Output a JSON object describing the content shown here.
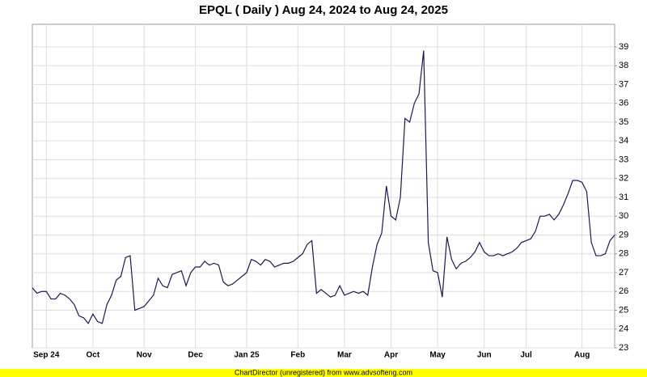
{
  "chart_data": {
    "type": "line",
    "title": "EPQL ( Daily ) Aug 24, 2024 to Aug 24, 2025",
    "footer": "ChartDirector (unregistered) from www.advsofteng.com",
    "categories": [
      null,
      null,
      null,
      "Sep 24",
      null,
      null,
      null,
      null,
      null,
      null,
      null,
      null,
      null,
      "Oct",
      null,
      null,
      null,
      null,
      null,
      null,
      null,
      null,
      null,
      null,
      "Nov",
      null,
      null,
      null,
      null,
      null,
      null,
      null,
      null,
      null,
      null,
      "Dec",
      null,
      null,
      null,
      null,
      null,
      null,
      null,
      null,
      null,
      null,
      "Jan 25",
      null,
      null,
      null,
      null,
      null,
      null,
      null,
      null,
      null,
      null,
      "Feb",
      null,
      null,
      null,
      null,
      null,
      null,
      null,
      null,
      null,
      "Mar",
      null,
      null,
      null,
      null,
      null,
      null,
      null,
      null,
      null,
      "Apr",
      null,
      null,
      null,
      null,
      null,
      null,
      null,
      null,
      null,
      "May",
      null,
      null,
      null,
      null,
      null,
      null,
      null,
      null,
      null,
      "Jun",
      null,
      null,
      null,
      null,
      null,
      null,
      null,
      null,
      "Jul",
      null,
      null,
      null,
      null,
      null,
      null,
      null,
      null,
      null,
      null,
      null,
      "Aug",
      null,
      null,
      null,
      null,
      null,
      null,
      null
    ],
    "series": [
      {
        "color": "#1a1a4e",
        "values": [
          26.2,
          25.9,
          26.0,
          26.0,
          25.6,
          25.6,
          25.9,
          25.8,
          25.6,
          25.3,
          24.7,
          24.6,
          24.3,
          24.8,
          24.4,
          24.3,
          25.3,
          25.8,
          26.6,
          26.8,
          27.8,
          27.9,
          25.0,
          25.1,
          25.2,
          25.5,
          25.8,
          26.7,
          26.3,
          26.2,
          26.9,
          27.0,
          27.1,
          26.3,
          27.0,
          27.3,
          27.3,
          27.6,
          27.4,
          27.5,
          27.4,
          26.5,
          26.3,
          26.4,
          26.6,
          26.8,
          27.0,
          27.7,
          27.6,
          27.4,
          27.7,
          27.6,
          27.3,
          27.4,
          27.5,
          27.5,
          27.6,
          27.8,
          28.0,
          28.5,
          28.7,
          25.9,
          26.1,
          25.9,
          25.7,
          25.8,
          26.3,
          25.8,
          25.9,
          26.0,
          25.9,
          26.0,
          25.8,
          27.3,
          28.5,
          29.1,
          31.6,
          30.0,
          29.8,
          31.0,
          35.2,
          35.0,
          36.0,
          36.5,
          38.8,
          28.6,
          27.1,
          27.0,
          25.7,
          28.9,
          27.7,
          27.2,
          27.5,
          27.6,
          27.8,
          28.1,
          28.6,
          28.1,
          27.9,
          27.9,
          28.0,
          27.9,
          28.0,
          28.1,
          28.3,
          28.6,
          28.7,
          28.8,
          29.2,
          30.0,
          30.0,
          30.1,
          29.8,
          30.1,
          30.6,
          31.2,
          31.9,
          31.9,
          31.8,
          31.3,
          28.6,
          27.9,
          27.9,
          28.0,
          28.7,
          29.0
        ]
      }
    ],
    "ylim": [
      23,
      40.2
    ],
    "yticks": [
      23,
      24,
      25,
      26,
      27,
      28,
      29,
      30,
      31,
      32,
      33,
      34,
      35,
      36,
      37,
      38,
      39
    ],
    "grid": true
  }
}
